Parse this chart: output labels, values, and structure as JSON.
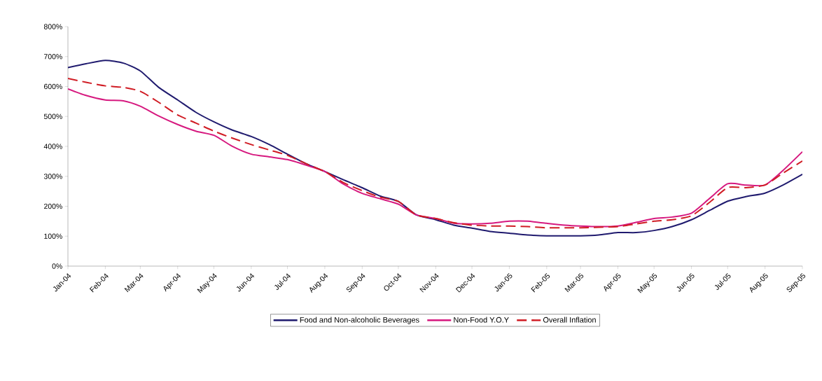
{
  "chart_data": {
    "type": "line",
    "x": [
      "2004-01-01",
      "2004-01-16",
      "2004-02-01",
      "2004-02-16",
      "2004-03-01",
      "2004-03-16",
      "2004-04-01",
      "2004-04-16",
      "2004-05-01",
      "2004-05-16",
      "2004-06-01",
      "2004-06-16",
      "2004-07-01",
      "2004-07-16",
      "2004-08-01",
      "2004-08-16",
      "2004-09-01",
      "2004-09-16",
      "2004-10-01",
      "2004-10-16",
      "2004-11-01",
      "2004-11-16",
      "2004-12-01",
      "2004-12-16",
      "2005-01-01",
      "2005-01-16",
      "2005-02-01",
      "2005-02-16",
      "2005-03-01",
      "2005-03-16",
      "2005-04-01",
      "2005-04-16",
      "2005-05-01",
      "2005-05-16",
      "2005-06-01",
      "2005-06-16",
      "2005-07-01",
      "2005-07-16",
      "2005-08-01",
      "2005-08-16",
      "2005-09-01"
    ],
    "series": [
      {
        "name": "Food and Non-alcoholic Beverages",
        "color": "#1f1a6e",
        "line_style": "solid",
        "values": [
          663,
          676,
          687,
          678,
          652,
          598,
          555,
          514,
          482,
          455,
          433,
          406,
          374,
          343,
          316,
          289,
          262,
          234,
          216,
          171,
          155,
          137,
          127,
          116,
          110,
          104,
          101,
          101,
          101,
          104,
          112,
          112,
          119,
          132,
          155,
          186,
          217,
          232,
          244,
          271,
          307
        ]
      },
      {
        "name": "Non-Food Y.O.Y",
        "color": "#d6197f",
        "line_style": "solid",
        "values": [
          592,
          570,
          555,
          552,
          534,
          502,
          473,
          451,
          437,
          401,
          374,
          365,
          356,
          338,
          316,
          275,
          243,
          225,
          207,
          171,
          159,
          143,
          141,
          143,
          150,
          150,
          143,
          137,
          134,
          132,
          134,
          146,
          159,
          164,
          177,
          226,
          275,
          271,
          271,
          320,
          382
        ]
      },
      {
        "name": "Overall Inflation",
        "color": "#d01c24",
        "line_style": "dashed",
        "values": [
          627,
          614,
          602,
          597,
          584,
          548,
          505,
          478,
          451,
          428,
          406,
          388,
          370,
          343,
          316,
          280,
          252,
          230,
          216,
          171,
          159,
          145,
          137,
          134,
          134,
          132,
          128,
          128,
          128,
          130,
          132,
          141,
          150,
          155,
          168,
          213,
          262,
          262,
          271,
          311,
          351
        ]
      }
    ],
    "xlim": [
      "2004-01-01",
      "2005-09-01"
    ],
    "xticks": [
      {
        "value": "2004-01-01",
        "label": "Jan-04"
      },
      {
        "value": "2004-02-01",
        "label": "Feb-04"
      },
      {
        "value": "2004-03-01",
        "label": "Mar-04"
      },
      {
        "value": "2004-04-01",
        "label": "Apr-04"
      },
      {
        "value": "2004-05-01",
        "label": "May-04"
      },
      {
        "value": "2004-06-01",
        "label": "Jun-04"
      },
      {
        "value": "2004-07-01",
        "label": "Jul-04"
      },
      {
        "value": "2004-08-01",
        "label": "Aug-04"
      },
      {
        "value": "2004-09-01",
        "label": "Sep-04"
      },
      {
        "value": "2004-10-01",
        "label": "Oct-04"
      },
      {
        "value": "2004-11-01",
        "label": "Nov-04"
      },
      {
        "value": "2004-12-01",
        "label": "Dec-04"
      },
      {
        "value": "2005-01-01",
        "label": "Jan-05"
      },
      {
        "value": "2005-02-01",
        "label": "Feb-05"
      },
      {
        "value": "2005-03-01",
        "label": "Mar-05"
      },
      {
        "value": "2005-04-01",
        "label": "Apr-05"
      },
      {
        "value": "2005-05-01",
        "label": "May-05"
      },
      {
        "value": "2005-06-01",
        "label": "Jun-05"
      },
      {
        "value": "2005-07-01",
        "label": "Jul-05"
      },
      {
        "value": "2005-08-01",
        "label": "Aug-05"
      },
      {
        "value": "2005-09-01",
        "label": "Sep-05"
      }
    ],
    "ylim": [
      0,
      800
    ],
    "yticks": [
      {
        "value": 0,
        "label": "0%"
      },
      {
        "value": 100,
        "label": "100%"
      },
      {
        "value": 200,
        "label": "200%"
      },
      {
        "value": 300,
        "label": "300%"
      },
      {
        "value": 400,
        "label": "400%"
      },
      {
        "value": 500,
        "label": "500%"
      },
      {
        "value": 600,
        "label": "600%"
      },
      {
        "value": 700,
        "label": "700%"
      },
      {
        "value": 800,
        "label": "800%"
      }
    ],
    "grid": false,
    "marker": "none",
    "legend": "bottom"
  }
}
